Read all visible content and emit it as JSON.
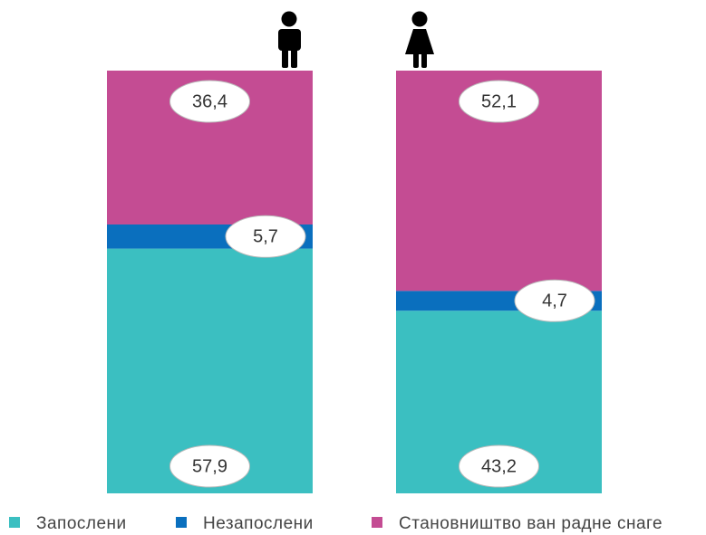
{
  "chart_data": {
    "type": "stacked-bar",
    "categories": [
      null,
      null
    ],
    "series": [
      {
        "name": "Запослени",
        "color": "#3bbfc1",
        "values": [
          57.9,
          43.2
        ],
        "value_labels": [
          "57,9",
          "43,2"
        ]
      },
      {
        "name": "Незапослени",
        "color": "#0a6fbe",
        "values": [
          5.7,
          4.7
        ],
        "value_labels": [
          "5,7",
          "4,7"
        ]
      },
      {
        "name": "Становништво ван радне снаге",
        "color": "#c44c93",
        "values": [
          36.4,
          52.1
        ],
        "value_labels": [
          "36,4",
          "52,1"
        ]
      }
    ],
    "legend": "bottom"
  }
}
